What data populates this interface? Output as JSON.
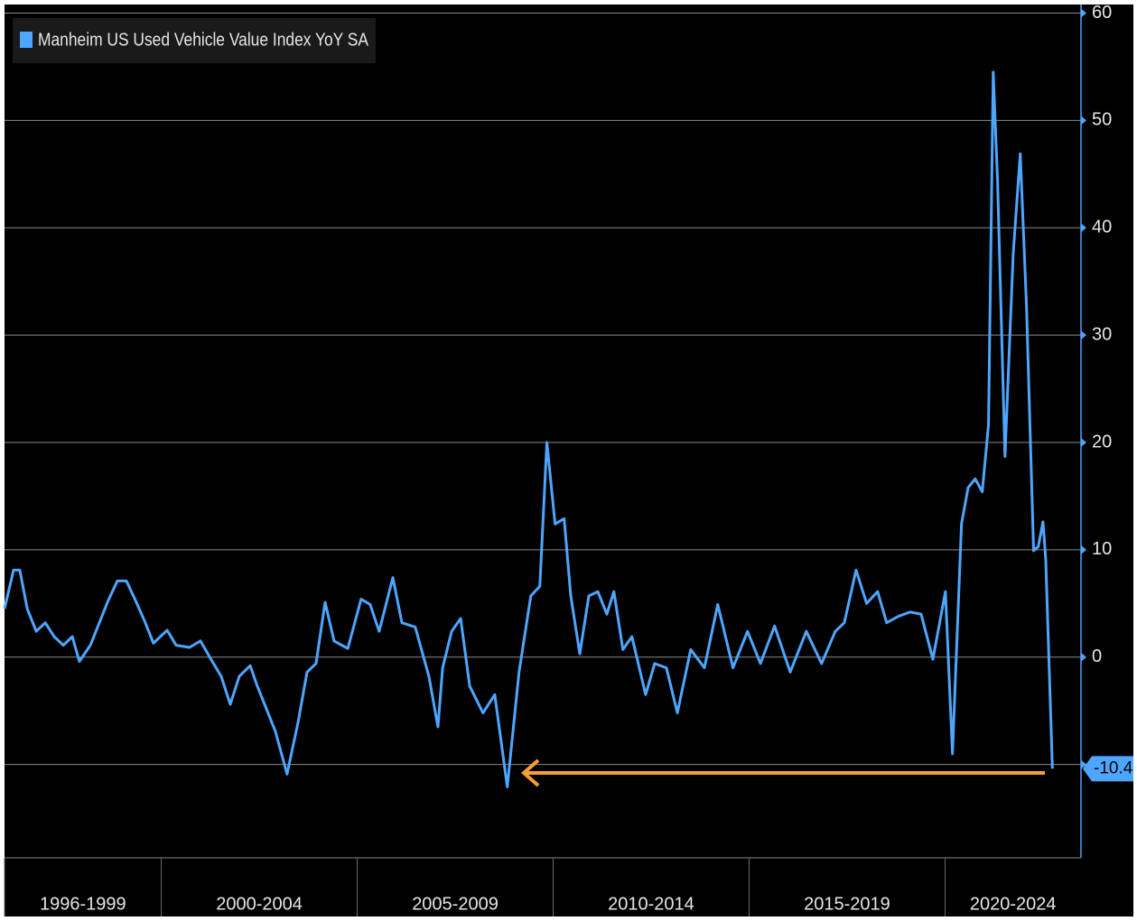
{
  "chart_data": {
    "type": "line",
    "x": [
      1996.0,
      1996.23,
      1996.39,
      1996.58,
      1996.81,
      1997.04,
      1997.27,
      1997.5,
      1997.73,
      1997.91,
      1998.19,
      1998.42,
      1998.65,
      1998.88,
      1999.11,
      1999.34,
      1999.57,
      1999.8,
      2000.15,
      2000.38,
      2000.72,
      2001.0,
      2001.3,
      2001.53,
      2001.76,
      2001.99,
      2002.27,
      2002.45,
      2002.68,
      2002.91,
      2003.21,
      2003.49,
      2003.72,
      2003.95,
      2004.18,
      2004.41,
      2004.76,
      2005.1,
      2005.33,
      2005.56,
      2005.91,
      2006.14,
      2006.48,
      2006.83,
      2007.06,
      2007.18,
      2007.41,
      2007.64,
      2007.87,
      2008.21,
      2008.51,
      2008.83,
      2009.13,
      2009.43,
      2009.66,
      2009.84,
      2010.05,
      2010.28,
      2010.45,
      2010.68,
      2010.91,
      2011.14,
      2011.37,
      2011.55,
      2011.78,
      2012.01,
      2012.36,
      2012.59,
      2012.89,
      2013.17,
      2013.51,
      2013.86,
      2014.2,
      2014.59,
      2014.96,
      2015.29,
      2015.65,
      2016.05,
      2016.46,
      2016.85,
      2017.2,
      2017.43,
      2017.73,
      2018.0,
      2018.28,
      2018.51,
      2018.81,
      2019.11,
      2019.39,
      2019.69,
      2020.01,
      2020.19,
      2020.42,
      2020.59,
      2020.77,
      2020.95,
      2021.11,
      2021.23,
      2021.34,
      2021.53,
      2021.74,
      2021.92,
      2022.08,
      2022.26,
      2022.38,
      2022.5,
      2022.57,
      2022.74
    ],
    "series": [
      {
        "name": "Manheim US Used Vehicle Value Index YoY SA",
        "color": "#4da6ff",
        "values": [
          4.5,
          8.1,
          8.1,
          4.5,
          2.4,
          3.2,
          1.9,
          1.1,
          1.9,
          -0.4,
          1.1,
          3.2,
          5.3,
          7.1,
          7.1,
          5.3,
          3.4,
          1.3,
          2.5,
          1.1,
          0.9,
          1.5,
          -0.4,
          -1.8,
          -4.4,
          -1.8,
          -0.8,
          -2.7,
          -4.8,
          -6.9,
          -10.9,
          -6.1,
          -1.4,
          -0.6,
          5.1,
          1.5,
          0.8,
          5.4,
          4.9,
          2.4,
          7.4,
          3.2,
          2.8,
          -1.8,
          -6.5,
          -1.0,
          2.4,
          3.6,
          -2.7,
          -5.2,
          -3.5,
          -12.1,
          -1.4,
          5.7,
          6.6,
          20.0,
          12.4,
          12.9,
          5.7,
          0.3,
          5.7,
          6.1,
          4.0,
          6.1,
          0.7,
          1.9,
          -3.5,
          -0.6,
          -1.0,
          -5.2,
          0.7,
          -1.0,
          4.9,
          -1.0,
          2.4,
          -0.6,
          2.9,
          -1.4,
          2.4,
          -0.6,
          2.4,
          3.2,
          8.1,
          5.0,
          6.1,
          3.2,
          3.8,
          4.2,
          4.0,
          -0.2,
          6.1,
          -9.0,
          12.4,
          15.8,
          16.6,
          15.4,
          21.7,
          54.5,
          44.4,
          18.7,
          37.6,
          46.9,
          32.6,
          9.9,
          10.3,
          12.6,
          9.1,
          -10.4
        ]
      }
    ],
    "xlim": [
      1996,
      2023.47
    ],
    "xticks": [
      {
        "value": 1996,
        "label": "1996-1999"
      },
      {
        "value": 2000,
        "label": "2000-2004"
      },
      {
        "value": 2005,
        "label": "2005-2009"
      },
      {
        "value": 2010,
        "label": "2010-2014"
      },
      {
        "value": 2015,
        "label": "2015-2019"
      },
      {
        "value": 2020,
        "label": "2020-2024"
      }
    ],
    "ylim": [
      -18.7,
      60.8
    ],
    "yticks": [
      -10,
      0,
      10,
      20,
      30,
      40,
      50,
      60
    ],
    "grid": true
  }
}
